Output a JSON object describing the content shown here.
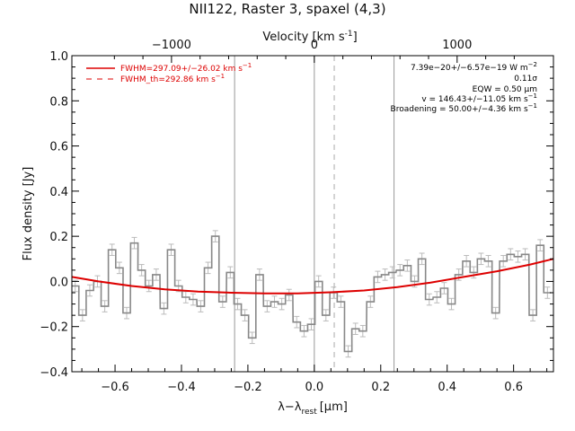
{
  "chart_data": {
    "type": "line",
    "title": "NII122, Raster 3, spaxel (4,3)",
    "xlabel": "λ−λ",
    "xlabel_sub": "rest",
    "xlabel_unit": "[μm]",
    "ylabel": "Flux density [Jy]",
    "top_label": "Velocity [km s",
    "top_label_sup": "-1",
    "top_label_end": "]",
    "xlim": [
      -0.73,
      0.72
    ],
    "ylim": [
      -0.4,
      1.0
    ],
    "xticks": [
      -0.6,
      -0.4,
      -0.2,
      0.0,
      0.2,
      0.4,
      0.6
    ],
    "xtick_labels": [
      "−0.6",
      "−0.4",
      "−0.2",
      "0.0",
      "0.2",
      "0.4",
      "0.6"
    ],
    "yticks": [
      -0.4,
      -0.2,
      0.0,
      0.2,
      0.4,
      0.6,
      0.8,
      1.0
    ],
    "ytick_labels": [
      "−0.4",
      "−0.2",
      "0.0",
      "0.2",
      "0.4",
      "0.6",
      "0.8",
      "1.0"
    ],
    "top_ticks_um": [
      -0.43,
      0.0,
      0.43
    ],
    "top_tick_labels": [
      "−1000",
      "0",
      "1000"
    ],
    "legend": [
      {
        "text_main": "FWHM=297.09+/−26.02 km s",
        "text_sup": "−1",
        "style": "solid",
        "color": "#dd0000"
      },
      {
        "text_main": "FWHM_th=292.86 km s",
        "text_sup": "−1",
        "style": "dashed",
        "color": "#dd0000"
      }
    ],
    "annotations": [
      {
        "main": "7.39e−20+/−6.57e−19 W m",
        "sup": "−2"
      },
      {
        "main": "0.11σ",
        "sup": ""
      },
      {
        "main": "EQW = 0.50 μm",
        "sup": ""
      },
      {
        "main": "v = 146.43+/−11.05 km s",
        "sup": "−1"
      },
      {
        "main": "Broadening = 50.00+/−4.36 km s",
        "sup": "−1"
      }
    ],
    "vlines_solid": [
      -0.24,
      0.0,
      0.24
    ],
    "vline_dashed": 0.06,
    "grid": false,
    "spectrum": {
      "name": "spectrum",
      "color": "#888888",
      "bin_width": 0.0222,
      "x": [
        -0.72,
        -0.698,
        -0.676,
        -0.653,
        -0.631,
        -0.609,
        -0.587,
        -0.565,
        -0.542,
        -0.52,
        -0.498,
        -0.476,
        -0.453,
        -0.431,
        -0.409,
        -0.387,
        -0.365,
        -0.342,
        -0.32,
        -0.298,
        -0.276,
        -0.253,
        -0.231,
        -0.209,
        -0.187,
        -0.165,
        -0.142,
        -0.12,
        -0.098,
        -0.076,
        -0.053,
        -0.031,
        -0.009,
        0.013,
        0.035,
        0.058,
        0.08,
        0.102,
        0.124,
        0.146,
        0.169,
        0.191,
        0.213,
        0.235,
        0.258,
        0.28,
        0.302,
        0.324,
        0.346,
        0.369,
        0.391,
        0.413,
        0.435,
        0.458,
        0.48,
        0.502,
        0.524,
        0.546,
        0.569,
        0.591,
        0.613,
        0.635,
        0.658,
        0.68,
        0.702
      ],
      "y": [
        -0.02,
        -0.15,
        -0.04,
        0.0,
        -0.11,
        0.14,
        0.06,
        -0.14,
        0.17,
        0.05,
        -0.02,
        0.03,
        -0.12,
        0.14,
        -0.02,
        -0.07,
        -0.08,
        -0.11,
        0.06,
        0.2,
        -0.09,
        0.04,
        -0.1,
        -0.15,
        -0.25,
        0.03,
        -0.11,
        -0.09,
        -0.1,
        -0.06,
        -0.18,
        -0.22,
        -0.19,
        0.0,
        -0.15,
        -0.05,
        -0.09,
        -0.31,
        -0.21,
        -0.22,
        -0.09,
        0.02,
        0.03,
        0.04,
        0.05,
        0.07,
        0.0,
        0.1,
        -0.08,
        -0.07,
        -0.03,
        -0.1,
        0.03,
        0.09,
        0.04,
        0.1,
        0.09,
        -0.14,
        0.09,
        0.12,
        0.11,
        0.12,
        -0.15,
        0.16,
        -0.05
      ],
      "error": 0.025
    },
    "fit": {
      "name": "fit",
      "color": "#dd0000",
      "x": [
        -0.73,
        -0.65,
        -0.55,
        -0.45,
        -0.35,
        -0.25,
        -0.15,
        -0.05,
        0.05,
        0.15,
        0.25,
        0.35,
        0.45,
        0.55,
        0.65,
        0.72
      ],
      "y": [
        0.02,
        0.0,
        -0.02,
        -0.035,
        -0.045,
        -0.05,
        -0.053,
        -0.053,
        -0.048,
        -0.04,
        -0.025,
        -0.005,
        0.02,
        0.045,
        0.075,
        0.1
      ]
    }
  }
}
